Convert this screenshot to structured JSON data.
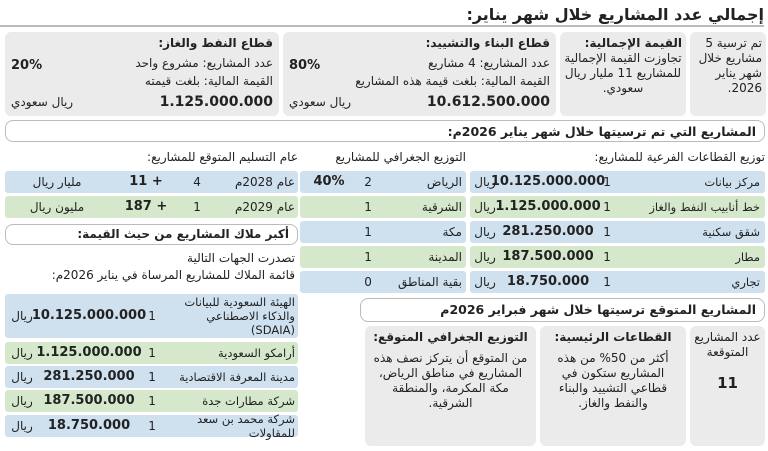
{
  "header": {
    "title": "إجمالي عدد المشاريع خلال شهر يناير:"
  },
  "summary": {
    "total": "تم ترسية 5 مشاريع خلال شهر يناير 2026.",
    "total_value": {
      "title": "القيمة الإجمالية:",
      "text": "تجاوزت القيمة الإجمالية للمشاريع 11 مليار ريال سعودي."
    },
    "construction": {
      "title": "قطاع البناء والتشييد:",
      "count": "عدد المشاريع: 4 مشاريع",
      "value_text": "القيمة المالية: بلغت قيمة هذه المشاريع",
      "share": "80%",
      "amount": "10.612.500.000",
      "currency": "ريال سعودي"
    },
    "oil_gas": {
      "title": "قطاع النفط والغاز:",
      "count": "عدد المشاريع: مشروع واحد",
      "value_text": "القيمة المالية: بلغت قيمته",
      "share": "20%",
      "amount": "1.125.000.000",
      "currency": "ريال سعودي"
    }
  },
  "january": {
    "title": "المشاريع التي تم ترسيتها خلال شهر يناير 2026م:",
    "subsectors": {
      "title": "توزيع القطاعات الفرعية للمشاريع:",
      "rows": [
        [
          "مركز بيانات",
          "1",
          "10.125.000.000",
          "ريال"
        ],
        [
          "خط أنابيب النفط والغاز",
          "1",
          "1.125.000.000",
          "ريال"
        ],
        [
          "شقق سكنية",
          "1",
          "281.250.000",
          "ريال"
        ],
        [
          "مطار",
          "1",
          "187.500.000",
          "ريال"
        ],
        [
          "تجاري",
          "1",
          "18.750.000",
          "ريال"
        ]
      ]
    },
    "regions": {
      "title": "التوزيع الجغرافي للمشاريع",
      "rows": [
        [
          "الرياض",
          "2",
          "40%"
        ],
        [
          "الشرقية",
          "1"
        ],
        [
          "مكة",
          "1"
        ],
        [
          "المدينة",
          "1"
        ],
        [
          "بقية المناطق",
          "0"
        ]
      ]
    },
    "delivery": {
      "title": "عام التسليم المتوقع للمشاريع:",
      "rows": [
        [
          "عام 2028م",
          "4",
          "+ 11",
          "مليار ريال"
        ],
        [
          "عام 2029م",
          "1",
          "+ 187",
          "مليون ريال"
        ]
      ]
    },
    "owners": {
      "title": "أكبر ملاك المشاريع من حيث القيمة:",
      "intro": [
        "تصدرت الجهات التالية",
        "قائمة الملاك للمشاريع المرساة في يناير 2026م:"
      ],
      "rows": [
        [
          "الهيئة السعودية للبيانات والذكاء الاصطناعي (SDAIA)",
          "1",
          "10.125.000.000",
          "ريال"
        ],
        [
          "أرامكو السعودية",
          "1",
          "1.125.000.000",
          "ريال"
        ],
        [
          "مدينة المعرفة الاقتصادية",
          "1",
          "281.250.000",
          "ريال"
        ],
        [
          "شركة مطارات جدة",
          "1",
          "187.500.000",
          "ريال"
        ],
        [
          "شركة محمد بن سعد للمقاولات",
          "1",
          "18.750.000",
          "ريال"
        ]
      ]
    }
  },
  "february": {
    "title": "المشاريع المتوقع ترسيتها خلال شهر فبراير 2026م",
    "count": {
      "title": "عدد المشاريع المتوقعة",
      "value": "11"
    },
    "sectors": {
      "title": "القطاعات الرئيسية:",
      "text": "أكثر من 50% من هذه المشاريع ستكون في قطاعي التشييد والبناء والنفط والغاز."
    },
    "regions": {
      "title": "التوزيع الجغرافي المتوقع:",
      "text": "من المتوقع أن يتركز نصف هذه المشاريع في مناطق الرياض، مكة المكرمة، والمنطقة الشرقية."
    }
  }
}
